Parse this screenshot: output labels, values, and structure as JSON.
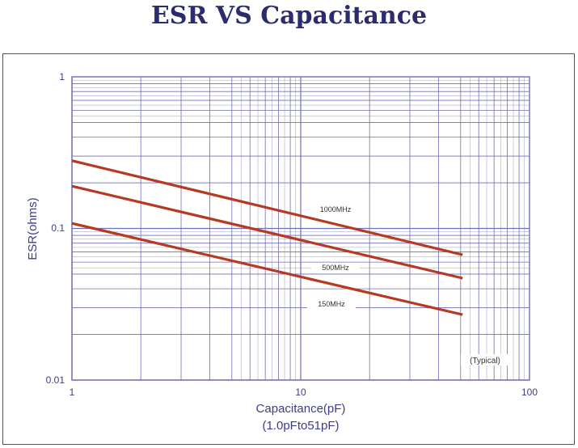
{
  "chart_data": {
    "type": "line",
    "title": "ESR VS Capacitance",
    "xlabel": "Capacitance(pF)",
    "xlabel_sub": "(1.0pFto51pF)",
    "ylabel": "ESR(ohms)",
    "x_scale": "log",
    "y_scale": "log",
    "xlim": [
      1,
      100
    ],
    "ylim": [
      0.01,
      1
    ],
    "x_ticks": [
      "1",
      "10",
      "100"
    ],
    "y_ticks": [
      "1",
      "0.1",
      "0.01"
    ],
    "grid": true,
    "note": "(Typical)",
    "series": [
      {
        "name": "1000MHz",
        "x": [
          1,
          51
        ],
        "y": [
          0.28,
          0.067
        ]
      },
      {
        "name": "500MHz",
        "x": [
          1,
          51
        ],
        "y": [
          0.19,
          0.047
        ]
      },
      {
        "name": "150MHz",
        "x": [
          1,
          51
        ],
        "y": [
          0.108,
          0.027
        ]
      }
    ],
    "colors": {
      "series": "#b63a22",
      "grid": "#6f6fb3",
      "text": "#3b3d8a"
    }
  }
}
